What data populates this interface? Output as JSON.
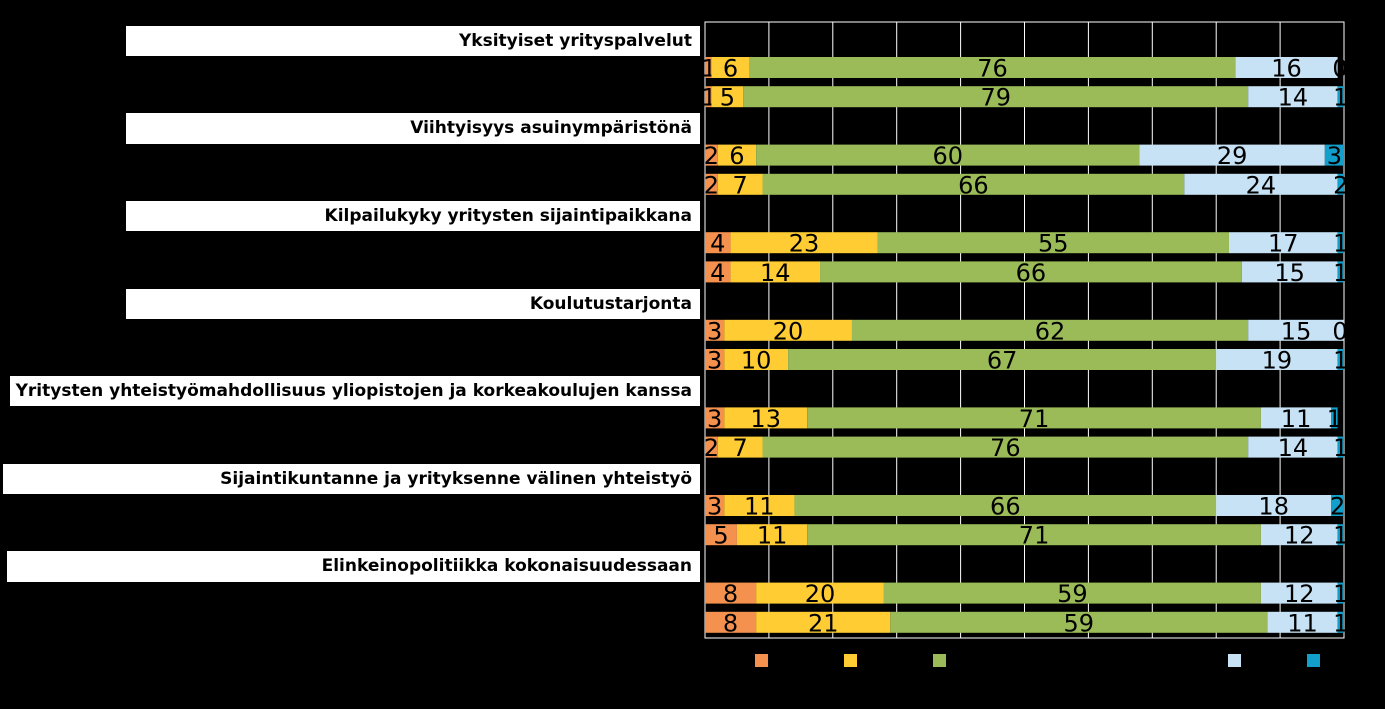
{
  "chart_data": {
    "type": "bar",
    "orientation": "horizontal",
    "stacked": true,
    "xlim": [
      0,
      100
    ],
    "grid": true,
    "legend_placement": "bottom",
    "colors": [
      "#F4914E",
      "#FFCC33",
      "#9BBB59",
      "#C6E2F4",
      "#129FCB"
    ],
    "categories": [
      "Yksityiset yrityspalvelut",
      "Viihtyisyys asuinympäristönä",
      "Kilpailukyky yritysten sijaintipaikkana",
      "Koulutustarjonta",
      "Yritysten yhteistyömahdollisuus yliopistojen ja korkeakoulujen kanssa",
      "Sijaintikuntanne ja yrityksenne välinen yhteistyö",
      "Elinkeinopolitiikka kokonaisuudessaan"
    ],
    "bars": [
      [
        1,
        6,
        76,
        16,
        0
      ],
      [
        1,
        5,
        79,
        14,
        1
      ],
      [
        2,
        6,
        60,
        29,
        3
      ],
      [
        2,
        7,
        66,
        24,
        2
      ],
      [
        4,
        23,
        55,
        17,
        1
      ],
      [
        4,
        14,
        66,
        15,
        1
      ],
      [
        3,
        20,
        62,
        15,
        0
      ],
      [
        3,
        10,
        67,
        19,
        1
      ],
      [
        3,
        13,
        71,
        11,
        1
      ],
      [
        2,
        7,
        76,
        14,
        1
      ],
      [
        3,
        11,
        66,
        18,
        2
      ],
      [
        5,
        11,
        71,
        12,
        1
      ],
      [
        8,
        20,
        59,
        12,
        1
      ],
      [
        8,
        21,
        59,
        11,
        1
      ]
    ],
    "legend": [
      "",
      "",
      "",
      "",
      ""
    ]
  }
}
